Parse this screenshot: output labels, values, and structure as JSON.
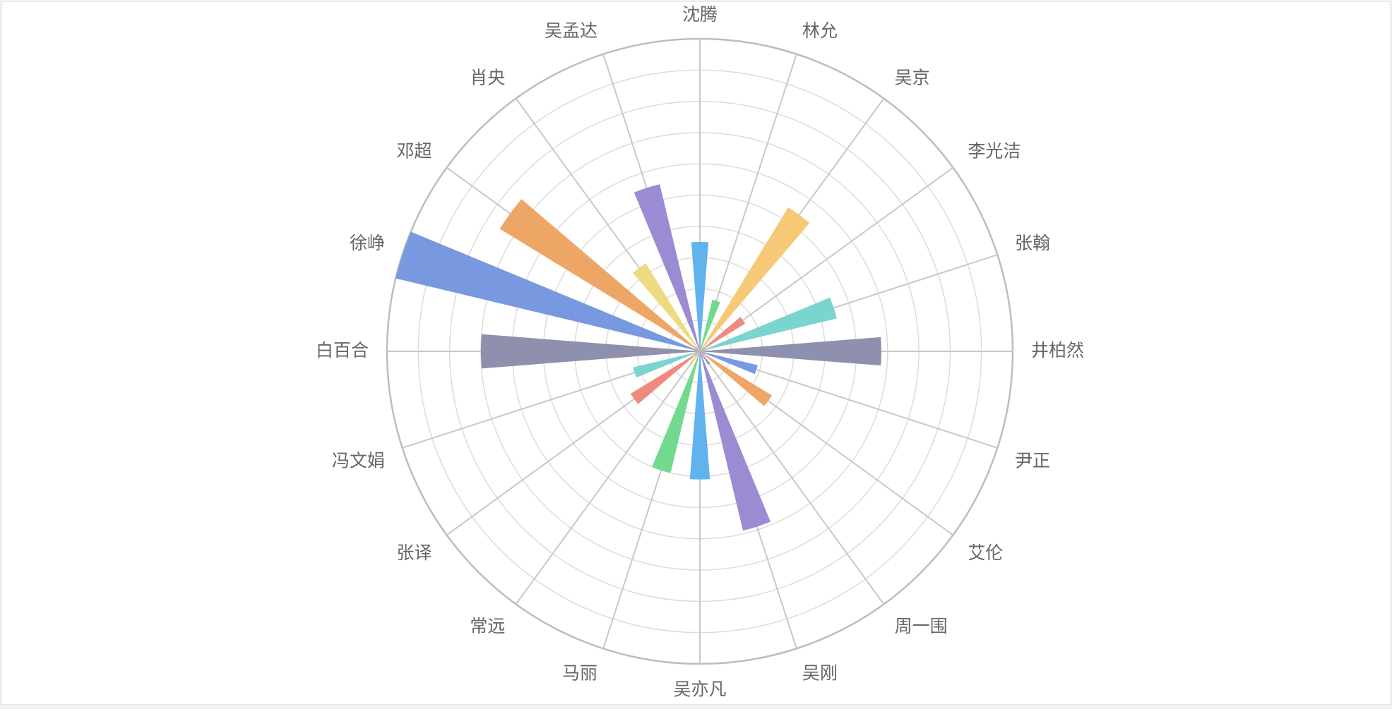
{
  "chart_data": {
    "type": "polar-bar",
    "title": "",
    "categories": [
      "沈腾",
      "林允",
      "吴京",
      "李光洁",
      "张翰",
      "井柏然",
      "尹正",
      "艾伦",
      "周一围",
      "吴刚",
      "吴亦凡",
      "马丽",
      "常远",
      "张译",
      "冯文娟",
      "白百合",
      "徐峥",
      "邓超",
      "肖央",
      "吴孟达"
    ],
    "values": [
      35,
      17,
      54,
      17,
      45,
      58,
      19,
      27,
      5,
      59,
      41,
      40,
      5,
      26,
      22,
      70,
      100,
      75,
      33,
      55
    ],
    "rlim": [
      0,
      100
    ],
    "ring_count": 10,
    "grid": true,
    "legend": "none",
    "colors": [
      "#62b2ee",
      "#73d98e",
      "#f6c977",
      "#f08a7e",
      "#7bd5cf",
      "#8f90ad",
      "#7898e0",
      "#eea667",
      "#9b8bd2",
      "#9b8bd2",
      "#62b2ee",
      "#73d98e",
      "#f6c977",
      "#f08a7e",
      "#7bd5cf",
      "#8f90ad",
      "#7898e0",
      "#eea667",
      "#ecdb80",
      "#9b8bd2"
    ]
  }
}
